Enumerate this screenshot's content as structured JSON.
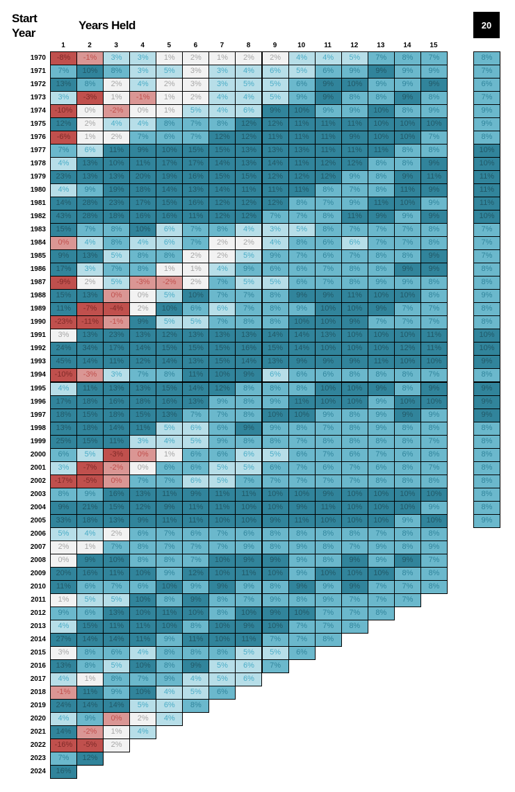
{
  "header": {
    "start_year_label": "Start Year",
    "years_held_label": "Years Held",
    "twenty_label": "20"
  },
  "chart_data": {
    "type": "heatmap",
    "title": "Years Held",
    "ylabel": "Start Year",
    "value_format": "percent",
    "shade_legend": {
      "R": "#c0504d",
      "r": "#da9694",
      "g": "#f2f2f2",
      "l": "#b7dee8",
      "m": "#6bb8cc",
      "d": "#31849b"
    },
    "columns": [
      "1",
      "2",
      "3",
      "4",
      "5",
      "6",
      "7",
      "8",
      "9",
      "10",
      "11",
      "12",
      "13",
      "14",
      "15"
    ],
    "twenty_column_label": "20",
    "rows": [
      {
        "year": "1970",
        "values": [
          -8,
          -1,
          3,
          3,
          1,
          2,
          1,
          2,
          2,
          4,
          4,
          5,
          7,
          8,
          7
        ],
        "shades": "Rrllggggglllmmm",
        "twenty": 8,
        "twenty_shade": "m"
      },
      {
        "year": "1971",
        "values": [
          7,
          10,
          8,
          3,
          5,
          3,
          3,
          4,
          6,
          5,
          6,
          9,
          9,
          9,
          9
        ],
        "shades": "mdmllgllllmmdmm",
        "twenty": 7,
        "twenty_shade": "m"
      },
      {
        "year": "1972",
        "values": [
          13,
          8,
          2,
          4,
          2,
          3,
          3,
          5,
          5,
          6,
          9,
          10,
          9,
          9,
          9
        ],
        "shades": "dmglgglllmddmmd",
        "twenty": 6,
        "twenty_shade": "m"
      },
      {
        "year": "1973",
        "values": [
          3,
          -3,
          1,
          -1,
          1,
          2,
          4,
          4,
          5,
          9,
          9,
          8,
          8,
          9,
          8
        ],
        "shades": "lRgrgglllmdmmdm",
        "twenty": 7,
        "twenty_shade": "m"
      },
      {
        "year": "1974",
        "values": [
          -10,
          0,
          -2,
          0,
          1,
          5,
          4,
          6,
          9,
          10,
          9,
          9,
          10,
          8,
          9
        ],
        "shades": "Rgrgglllddmmdmm",
        "twenty": 9,
        "twenty_shade": "m"
      },
      {
        "year": "1975",
        "values": [
          12,
          2,
          4,
          4,
          8,
          7,
          8,
          12,
          12,
          11,
          11,
          11,
          10,
          10,
          10
        ],
        "shades": "dgllmmmdddddddd",
        "twenty": 9,
        "twenty_shade": "m"
      },
      {
        "year": "1976",
        "values": [
          -6,
          1,
          2,
          7,
          6,
          7,
          12,
          12,
          11,
          11,
          11,
          9,
          10,
          10,
          7
        ],
        "shades": "Rggmmmddddddddm",
        "twenty": 8,
        "twenty_shade": "m"
      },
      {
        "year": "1977",
        "values": [
          7,
          6,
          11,
          9,
          10,
          15,
          15,
          13,
          13,
          13,
          11,
          11,
          11,
          8,
          8
        ],
        "shades": "mldddddddddddmm",
        "twenty": 10,
        "twenty_shade": "d"
      },
      {
        "year": "1978",
        "values": [
          4,
          13,
          10,
          11,
          17,
          17,
          14,
          13,
          14,
          11,
          12,
          12,
          8,
          8,
          9
        ],
        "shades": "ldddddddddddmmd",
        "twenty": 10,
        "twenty_shade": "d"
      },
      {
        "year": "1979",
        "values": [
          23,
          13,
          13,
          20,
          19,
          16,
          15,
          15,
          12,
          12,
          12,
          9,
          8,
          9,
          11
        ],
        "shades": "dddddddddddmmdd",
        "twenty": 11,
        "twenty_shade": "d"
      },
      {
        "year": "1980",
        "values": [
          4,
          9,
          19,
          18,
          14,
          13,
          14,
          11,
          11,
          11,
          8,
          7,
          8,
          11,
          9
        ],
        "shades": "lmddddddddmmmdd",
        "twenty": 11,
        "twenty_shade": "d"
      },
      {
        "year": "1981",
        "values": [
          14,
          28,
          23,
          17,
          15,
          16,
          12,
          12,
          12,
          8,
          7,
          9,
          11,
          10,
          9
        ],
        "shades": "dddddddddmmmddm",
        "twenty": 11,
        "twenty_shade": "d"
      },
      {
        "year": "1982",
        "values": [
          43,
          28,
          18,
          16,
          16,
          11,
          12,
          12,
          7,
          7,
          8,
          11,
          9,
          9,
          9
        ],
        "shades": "ddddddddmmmddmd",
        "twenty": 10,
        "twenty_shade": "d"
      },
      {
        "year": "1983",
        "values": [
          15,
          7,
          8,
          10,
          6,
          7,
          8,
          4,
          3,
          5,
          8,
          7,
          7,
          7,
          8
        ],
        "shades": "dmmdlmmlllmmmmm",
        "twenty": 7,
        "twenty_shade": "m"
      },
      {
        "year": "1984",
        "values": [
          0,
          4,
          8,
          4,
          6,
          7,
          2,
          2,
          4,
          8,
          6,
          6,
          7,
          7,
          8
        ],
        "shades": "rlmllmgglmmlmmm",
        "twenty": 7,
        "twenty_shade": "m"
      },
      {
        "year": "1985",
        "values": [
          9,
          13,
          5,
          8,
          8,
          2,
          2,
          5,
          9,
          7,
          6,
          7,
          8,
          8,
          9
        ],
        "shades": "ddlmmgglmmmmmmd",
        "twenty": 7,
        "twenty_shade": "m"
      },
      {
        "year": "1986",
        "values": [
          17,
          3,
          7,
          8,
          1,
          1,
          4,
          9,
          6,
          6,
          7,
          8,
          8,
          9,
          9
        ],
        "shades": "dlmmgglmmmmmmdd",
        "twenty": 8,
        "twenty_shade": "m"
      },
      {
        "year": "1987",
        "values": [
          -9,
          2,
          5,
          -3,
          -2,
          2,
          7,
          5,
          5,
          6,
          7,
          8,
          9,
          9,
          8
        ],
        "shades": "Rglrrgmllmmmmmm",
        "twenty": 8,
        "twenty_shade": "m"
      },
      {
        "year": "1988",
        "values": [
          15,
          13,
          0,
          0,
          5,
          10,
          7,
          7,
          8,
          9,
          9,
          11,
          10,
          10,
          8
        ],
        "shades": "ddrgldmmmdddddm",
        "twenty": 9,
        "twenty_shade": "m"
      },
      {
        "year": "1989",
        "values": [
          11,
          -7,
          -4,
          2,
          10,
          6,
          6,
          7,
          8,
          9,
          10,
          10,
          9,
          7,
          7
        ],
        "shades": "dRRgdmlmmmdddmm",
        "twenty": 8,
        "twenty_shade": "m"
      },
      {
        "year": "1990",
        "values": [
          -23,
          -11,
          -1,
          9,
          5,
          5,
          7,
          8,
          8,
          10,
          10,
          9,
          7,
          7,
          7
        ],
        "shades": "RRrdllmmmdddmmm",
        "twenty": 8,
        "twenty_shade": "m"
      },
      {
        "year": "1991",
        "values": [
          3,
          13,
          23,
          13,
          12,
          13,
          13,
          13,
          14,
          14,
          13,
          10,
          10,
          10,
          11
        ],
        "shades": "gdddddddddddddd",
        "twenty": 10,
        "twenty_shade": "d"
      },
      {
        "year": "1992",
        "values": [
          24,
          34,
          17,
          14,
          15,
          15,
          15,
          16,
          15,
          14,
          10,
          10,
          10,
          12,
          11
        ],
        "shades": "ddddddddddddddd",
        "twenty": 10,
        "twenty_shade": "d"
      },
      {
        "year": "1993",
        "values": [
          45,
          14,
          11,
          12,
          14,
          13,
          15,
          14,
          13,
          9,
          9,
          9,
          11,
          10,
          10
        ],
        "shades": "ddddddddddddddd",
        "twenty": 9,
        "twenty_shade": "d"
      },
      {
        "year": "1994",
        "values": [
          -10,
          -3,
          3,
          7,
          8,
          11,
          10,
          9,
          6,
          6,
          6,
          8,
          8,
          8,
          7
        ],
        "shades": "Rrlmmdddlmmmmmm",
        "twenty": 8,
        "twenty_shade": "m"
      },
      {
        "year": "1995",
        "values": [
          4,
          11,
          13,
          13,
          15,
          14,
          12,
          8,
          8,
          8,
          10,
          10,
          9,
          8,
          9
        ],
        "shades": "lddddddmmmdddmd",
        "twenty": 9,
        "twenty_shade": "d"
      },
      {
        "year": "1996",
        "values": [
          17,
          18,
          16,
          18,
          16,
          13,
          9,
          8,
          9,
          11,
          10,
          10,
          9,
          10,
          10
        ],
        "shades": "ddddddmmmdddmdd",
        "twenty": 9,
        "twenty_shade": "d"
      },
      {
        "year": "1997",
        "values": [
          18,
          15,
          18,
          15,
          13,
          7,
          7,
          8,
          10,
          10,
          9,
          8,
          9,
          9,
          9
        ],
        "shades": "dddddmmmddmmmdm",
        "twenty": 9,
        "twenty_shade": "d"
      },
      {
        "year": "1998",
        "values": [
          13,
          18,
          14,
          11,
          5,
          6,
          6,
          9,
          9,
          8,
          7,
          8,
          9,
          8,
          8
        ],
        "shades": "ddddllmdmmmmmmm",
        "twenty": 8,
        "twenty_shade": "m"
      },
      {
        "year": "1999",
        "values": [
          25,
          15,
          11,
          3,
          4,
          5,
          9,
          8,
          8,
          7,
          8,
          8,
          8,
          8,
          7
        ],
        "shades": "dddlllmmmmmmmmm",
        "twenty": 8,
        "twenty_shade": "m"
      },
      {
        "year": "2000",
        "values": [
          6,
          5,
          -3,
          0,
          1,
          6,
          6,
          6,
          5,
          6,
          7,
          6,
          7,
          6,
          8
        ],
        "shades": "mlRrgmmllmmmmmm",
        "twenty": 8,
        "twenty_shade": "m"
      },
      {
        "year": "2001",
        "values": [
          3,
          -7,
          -2,
          0,
          6,
          6,
          5,
          5,
          6,
          7,
          6,
          7,
          6,
          8,
          7
        ],
        "shades": "lRrgmmllmmmmmmm",
        "twenty": 8,
        "twenty_shade": "m"
      },
      {
        "year": "2002",
        "values": [
          -17,
          -5,
          0,
          7,
          7,
          6,
          5,
          7,
          7,
          7,
          7,
          7,
          8,
          8,
          8
        ],
        "shades": "RRrmmllmmmmmmmm",
        "twenty": 8,
        "twenty_shade": "m"
      },
      {
        "year": "2003",
        "values": [
          8,
          9,
          16,
          13,
          11,
          9,
          11,
          11,
          10,
          10,
          9,
          10,
          10,
          10,
          10
        ],
        "shades": "mmddddddddddddd",
        "twenty": 8,
        "twenty_shade": "m"
      },
      {
        "year": "2004",
        "values": [
          9,
          21,
          15,
          12,
          9,
          11,
          11,
          10,
          10,
          9,
          11,
          10,
          10,
          10,
          9
        ],
        "shades": "ddddddddddddddm",
        "twenty": 8,
        "twenty_shade": "m"
      },
      {
        "year": "2005",
        "values": [
          33,
          18,
          13,
          9,
          11,
          11,
          10,
          10,
          9,
          11,
          10,
          10,
          10,
          9,
          10
        ],
        "shades": "dddddddddddddmd",
        "twenty": 9,
        "twenty_shade": "m"
      },
      {
        "year": "2006",
        "values": [
          5,
          4,
          2,
          6,
          7,
          6,
          7,
          6,
          8,
          8,
          8,
          8,
          7,
          8,
          8
        ],
        "shades": "llgmmmmmmmmmmmm"
      },
      {
        "year": "2007",
        "values": [
          2,
          1,
          7,
          8,
          7,
          7,
          7,
          9,
          8,
          9,
          8,
          7,
          9,
          8,
          9
        ],
        "shades": "ggmmmmmmmmmmmmm"
      },
      {
        "year": "2008",
        "values": [
          0,
          9,
          10,
          8,
          8,
          7,
          10,
          9,
          9,
          9,
          8,
          9,
          9,
          9,
          7
        ],
        "shades": "gddmmmdddmmdmdm"
      },
      {
        "year": "2009",
        "values": [
          20,
          16,
          11,
          10,
          9,
          12,
          10,
          11,
          10,
          9,
          10,
          10,
          10,
          8,
          8
        ],
        "shades": "ddddmddddmdddmm"
      },
      {
        "year": "2010",
        "values": [
          11,
          6,
          7,
          6,
          10,
          9,
          9,
          9,
          8,
          9,
          9,
          9,
          7,
          7,
          8
        ],
        "shades": "dmmmdmdmmdmdmmm"
      },
      {
        "year": "2011",
        "values": [
          1,
          5,
          5,
          10,
          8,
          9,
          8,
          7,
          9,
          8,
          9,
          7,
          7,
          7
        ],
        "shades": "glldmdmmmmmmmm"
      },
      {
        "year": "2012",
        "values": [
          9,
          6,
          13,
          10,
          11,
          10,
          8,
          10,
          9,
          10,
          7,
          7,
          8
        ],
        "shades": "mmddddmdddmmm"
      },
      {
        "year": "2013",
        "values": [
          4,
          15,
          11,
          11,
          10,
          8,
          10,
          9,
          10,
          7,
          7,
          8
        ],
        "shades": "lddddmdddmmm"
      },
      {
        "year": "2014",
        "values": [
          27,
          14,
          14,
          11,
          9,
          11,
          10,
          11,
          7,
          7,
          8
        ],
        "shades": "ddddmdddmmm"
      },
      {
        "year": "2015",
        "values": [
          3,
          8,
          6,
          4,
          8,
          8,
          8,
          5,
          5,
          6
        ],
        "shades": "gmmlmmmllm"
      },
      {
        "year": "2016",
        "values": [
          13,
          8,
          5,
          10,
          8,
          9,
          5,
          6,
          7
        ],
        "shades": "dmldmdllm"
      },
      {
        "year": "2017",
        "values": [
          4,
          1,
          8,
          7,
          9,
          4,
          5,
          6
        ],
        "shades": "lgmmmlll"
      },
      {
        "year": "2018",
        "values": [
          -1,
          11,
          9,
          10,
          4,
          5,
          6
        ],
        "shades": "rdmdllm"
      },
      {
        "year": "2019",
        "values": [
          24,
          14,
          14,
          5,
          6,
          8
        ],
        "shades": "dddllm"
      },
      {
        "year": "2020",
        "values": [
          4,
          9,
          0,
          2,
          4
        ],
        "shades": "lmrgl"
      },
      {
        "year": "2021",
        "values": [
          14,
          -2,
          1,
          4
        ],
        "shades": "drgl"
      },
      {
        "year": "2022",
        "values": [
          -16,
          -5,
          2
        ],
        "shades": "RRg"
      },
      {
        "year": "2023",
        "values": [
          7,
          12
        ],
        "shades": "md"
      },
      {
        "year": "2024",
        "values": [
          16
        ],
        "shades": "d"
      }
    ]
  }
}
